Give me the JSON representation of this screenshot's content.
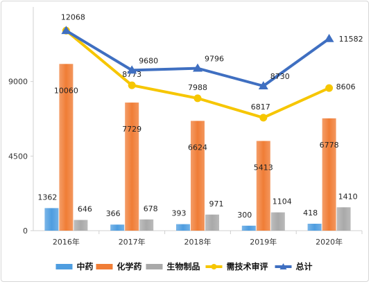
{
  "chart_data": {
    "type": "bar",
    "categories": [
      "2016年",
      "2017年",
      "2018年",
      "2019年",
      "2020年"
    ],
    "ylim": [
      0,
      13500
    ],
    "yticks": [
      "0",
      "4500",
      "9000"
    ],
    "grid": false,
    "legend_position": "bottom",
    "bar_series": [
      {
        "name": "中药",
        "color": "#4e9de0",
        "values": [
          1362,
          366,
          393,
          300,
          418
        ]
      },
      {
        "name": "化学药",
        "color": "#f07d36",
        "values": [
          10060,
          7729,
          6624,
          5413,
          6778
        ]
      },
      {
        "name": "生物制品",
        "color": "#a9a9a9",
        "values": [
          646,
          678,
          971,
          1104,
          1410
        ]
      }
    ],
    "line_series": [
      {
        "name": "需技术审评",
        "color": "#f6c600",
        "marker": "circle",
        "values": [
          12068,
          8773,
          7988,
          6817,
          8606
        ]
      },
      {
        "name": "总计",
        "color": "#3f6fc1",
        "marker": "triangle",
        "values": [
          12068,
          9680,
          9796,
          8730,
          11582
        ]
      }
    ],
    "line_labels": {
      "需技术审评": [
        "",
        "8773",
        "7988",
        "6817",
        "8606"
      ],
      "总计": [
        "12068",
        "9680",
        "9796",
        "8730",
        "11582"
      ]
    },
    "legend": [
      "中药",
      "化学药",
      "生物制品",
      "需技术审评",
      "总计"
    ]
  }
}
